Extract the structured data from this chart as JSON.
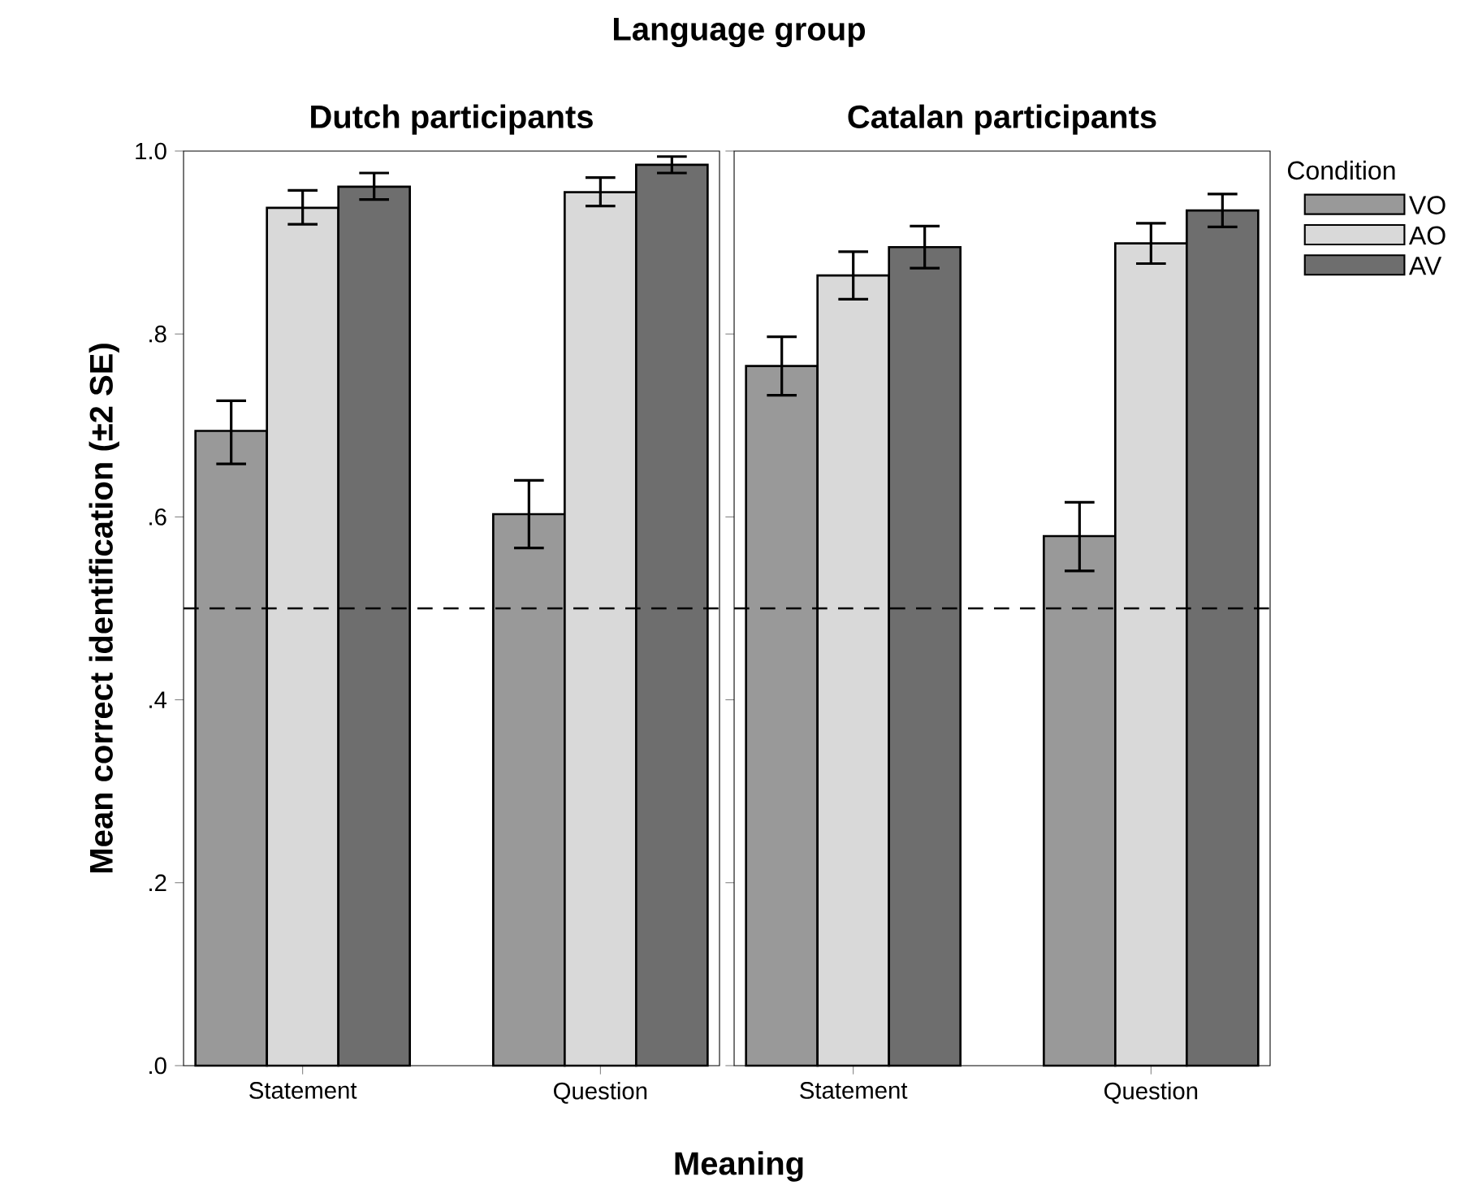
{
  "chart_data": [
    {
      "type": "bar",
      "title": "Dutch participants",
      "ylabel": "Mean correct identification (±2 SE)",
      "xlabel": "Meaning",
      "annotations": [
        "Language group"
      ],
      "categories": [
        "Statement",
        "Question"
      ],
      "series": [
        {
          "color": "#999999",
          "values": [
            0.694,
            0.603
          ],
          "errors": [
            [
              0.658,
              0.727
            ],
            [
              0.566,
              0.64
            ]
          ]
        },
        {
          "color": "#d9d9d9",
          "values": [
            0.938,
            0.955
          ],
          "errors": [
            [
              0.92,
              0.957
            ],
            [
              0.94,
              0.971
            ]
          ]
        },
        {
          "color": "#6e6e6e",
          "values": [
            0.961,
            0.985
          ],
          "errors": [
            [
              0.947,
              0.976
            ],
            [
              0.976,
              0.994
            ]
          ]
        }
      ],
      "ylim": [
        0,
        1
      ],
      "yticks": [
        {
          "value": 0,
          "label": ".0"
        },
        {
          "value": 0.2,
          "label": ".2"
        },
        {
          "value": 0.4,
          "label": ".4"
        },
        {
          "value": 0.6,
          "label": ".6"
        },
        {
          "value": 0.8,
          "label": ".8"
        },
        {
          "value": 1,
          "label": "1.0"
        }
      ],
      "ref_lines": [
        {
          "axis": "y",
          "value": 0.5,
          "line_style": "dashed"
        }
      ]
    },
    {
      "type": "bar",
      "title": "Catalan participants",
      "legend_title": "Condition",
      "legend": "right",
      "tick_labels": "x",
      "categories": [
        "Statement",
        "Question"
      ],
      "series": [
        {
          "name": "VO",
          "color": "#999999",
          "values": [
            0.765,
            0.579
          ],
          "errors": [
            [
              0.733,
              0.797
            ],
            [
              0.541,
              0.616
            ]
          ]
        },
        {
          "name": "AO",
          "color": "#d9d9d9",
          "values": [
            0.864,
            0.899
          ],
          "errors": [
            [
              0.838,
              0.89
            ],
            [
              0.877,
              0.921
            ]
          ]
        },
        {
          "name": "AV",
          "color": "#6e6e6e",
          "values": [
            0.895,
            0.935
          ],
          "errors": [
            [
              0.872,
              0.918
            ],
            [
              0.917,
              0.953
            ]
          ]
        }
      ],
      "ylim": [
        0,
        1
      ],
      "yticks": [
        0,
        0.2,
        0.4,
        0.6,
        0.8,
        1
      ],
      "ref_lines": [
        {
          "axis": "y",
          "value": 0.5,
          "line_style": "dashed"
        }
      ]
    }
  ]
}
